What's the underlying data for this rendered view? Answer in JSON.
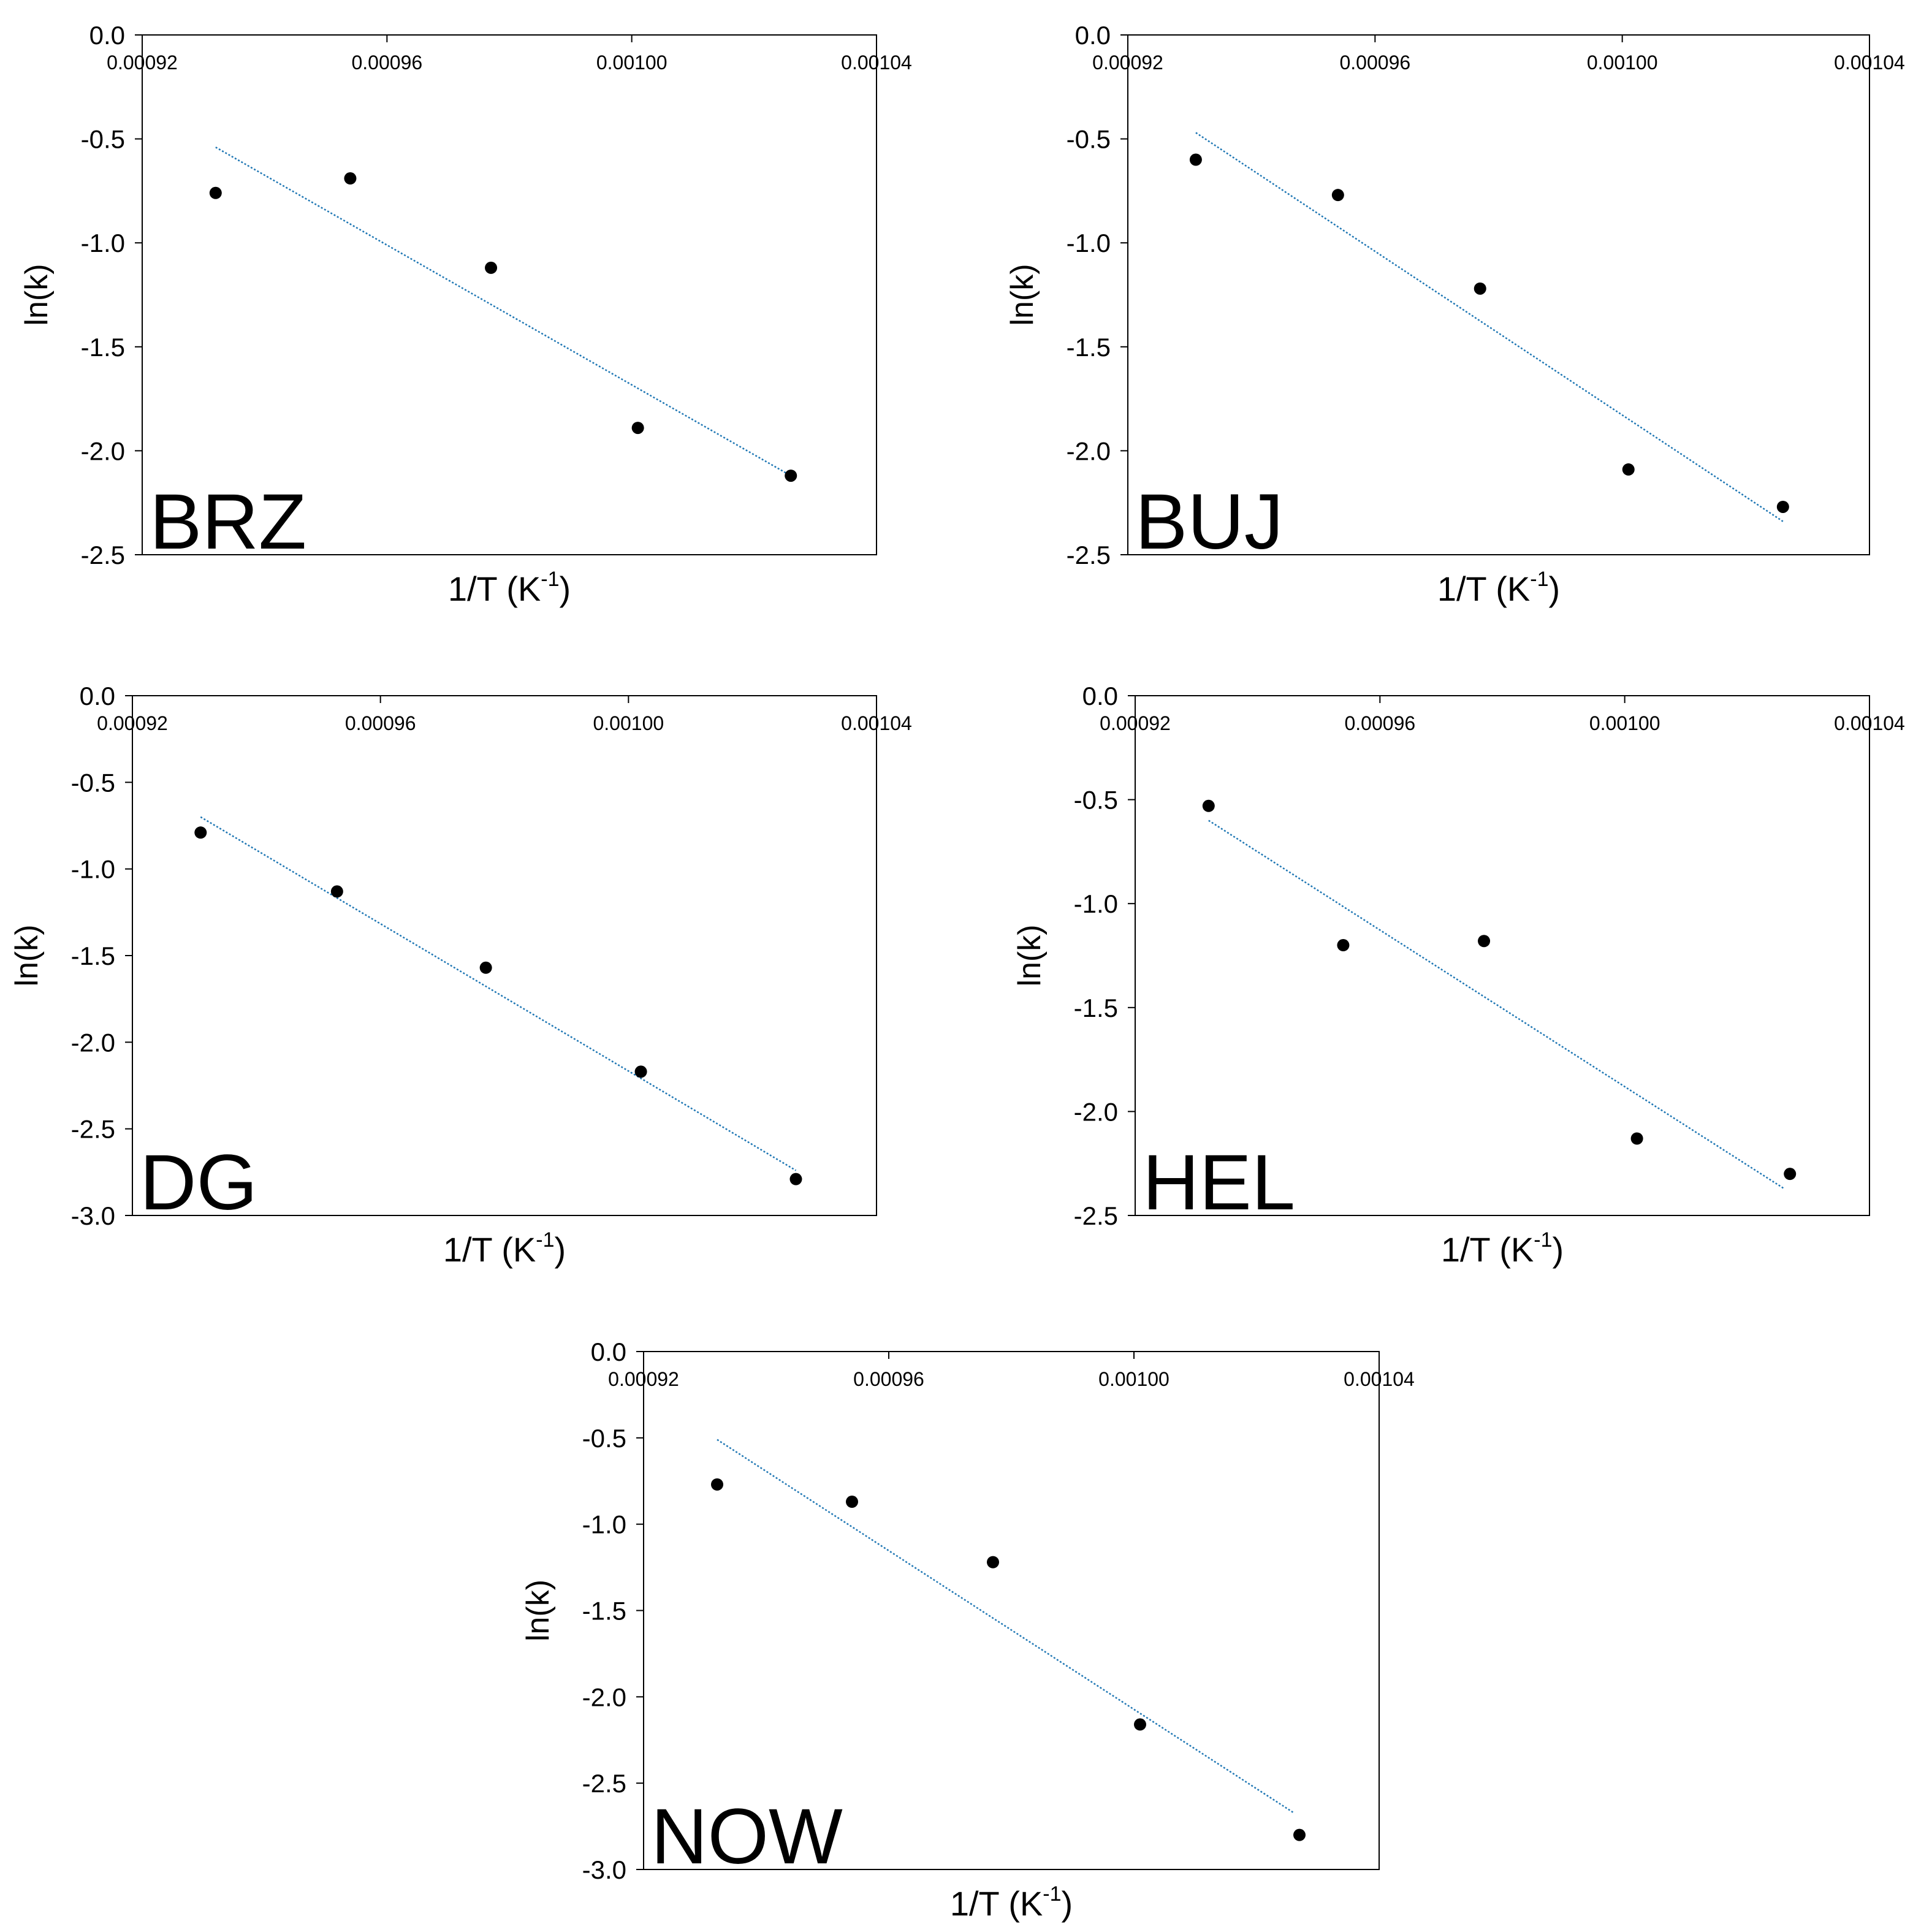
{
  "chart_data": [
    {
      "type": "scatter",
      "panel_label": "BRZ",
      "xlabel": "1/T (K",
      "xlabel_sup": "-1",
      "xlabel_close": ")",
      "ylabel": "ln(k)",
      "xlim": [
        0.00092,
        0.00104
      ],
      "ylim": [
        -2.5,
        0.0
      ],
      "xticks": [
        "0.00092",
        "0.00096",
        "0.00100",
        "0.00104"
      ],
      "yticks": [
        "0.0",
        "-0.5",
        "-1.0",
        "-1.5",
        "-2.0",
        "-2.5"
      ],
      "x_axis_position": "top",
      "grid": false,
      "points": {
        "x": [
          0.000932,
          0.000954,
          0.000977,
          0.001001,
          0.001026
        ],
        "y": [
          -0.76,
          -0.69,
          -1.12,
          -1.89,
          -2.12
        ]
      },
      "trendline": {
        "x": [
          0.000932,
          0.001026
        ],
        "y": [
          -0.54,
          -2.12
        ]
      },
      "point_color": "#000000",
      "trend_color": "#1f77b4"
    },
    {
      "type": "scatter",
      "panel_label": "BUJ",
      "xlabel": "1/T (K",
      "xlabel_sup": "-1",
      "xlabel_close": ")",
      "ylabel": "ln(k)",
      "xlim": [
        0.00092,
        0.00104
      ],
      "ylim": [
        -2.5,
        0.0
      ],
      "xticks": [
        "0.00092",
        "0.00096",
        "0.00100",
        "0.00104"
      ],
      "yticks": [
        "0.0",
        "-0.5",
        "-1.0",
        "-1.5",
        "-2.0",
        "-2.5"
      ],
      "x_axis_position": "top",
      "grid": false,
      "points": {
        "x": [
          0.000931,
          0.000954,
          0.000977,
          0.001001,
          0.001026
        ],
        "y": [
          -0.6,
          -0.77,
          -1.22,
          -2.09,
          -2.27
        ]
      },
      "trendline": {
        "x": [
          0.000931,
          0.001026
        ],
        "y": [
          -0.47,
          -2.34
        ]
      },
      "point_color": "#000000",
      "trend_color": "#1f77b4"
    },
    {
      "type": "scatter",
      "panel_label": "DG",
      "xlabel": "1/T (K",
      "xlabel_sup": "-1",
      "xlabel_close": ")",
      "ylabel": "ln(k)",
      "xlim": [
        0.00092,
        0.00104
      ],
      "ylim": [
        -3.0,
        0.0
      ],
      "xticks": [
        "0.00092",
        "0.00096",
        "0.00100",
        "0.00104"
      ],
      "yticks": [
        "0.0",
        "-0.5",
        "-1.0",
        "-1.5",
        "-2.0",
        "-2.5",
        "-3.0"
      ],
      "x_axis_position": "top",
      "grid": false,
      "points": {
        "x": [
          0.000931,
          0.000953,
          0.000977,
          0.001002,
          0.001027
        ],
        "y": [
          -0.79,
          -1.13,
          -1.57,
          -2.17,
          -2.79
        ]
      },
      "trendline": {
        "x": [
          0.000931,
          0.001027
        ],
        "y": [
          -0.7,
          -2.74
        ]
      },
      "point_color": "#000000",
      "trend_color": "#1f77b4"
    },
    {
      "type": "scatter",
      "panel_label": "HEL",
      "xlabel": "1/T (K",
      "xlabel_sup": "-1",
      "xlabel_close": ")",
      "ylabel": "ln(k)",
      "xlim": [
        0.00092,
        0.00104
      ],
      "ylim": [
        -2.5,
        0.0
      ],
      "xticks": [
        "0.00092",
        "0.00096",
        "0.00100",
        "0.00104"
      ],
      "yticks": [
        "0.0",
        "-0.5",
        "-1.0",
        "-1.5",
        "-2.0",
        "-2.5"
      ],
      "x_axis_position": "top",
      "grid": false,
      "points": {
        "x": [
          0.000932,
          0.000954,
          0.000977,
          0.001002,
          0.001027
        ],
        "y": [
          -0.53,
          -1.2,
          -1.18,
          -2.13,
          -2.3
        ]
      },
      "trendline": {
        "x": [
          0.000932,
          0.001026
        ],
        "y": [
          -0.6,
          -2.37
        ]
      },
      "point_color": "#000000",
      "trend_color": "#1f77b4"
    },
    {
      "type": "scatter",
      "panel_label": "NOW",
      "xlabel": "1/T (K",
      "xlabel_sup": "-1",
      "xlabel_close": ")",
      "ylabel": "ln(k)",
      "xlim": [
        0.00092,
        0.00104
      ],
      "ylim": [
        -3.0,
        0.0
      ],
      "xticks": [
        "0.00092",
        "0.00096",
        "0.00100",
        "0.00104"
      ],
      "yticks": [
        "0.0",
        "-0.5",
        "-1.0",
        "-1.5",
        "-2.0",
        "-2.5",
        "-3.0"
      ],
      "x_axis_position": "top",
      "grid": false,
      "points": {
        "x": [
          0.000932,
          0.000954,
          0.000977,
          0.001001,
          0.001027
        ],
        "y": [
          -0.77,
          -0.87,
          -1.22,
          -2.16,
          -2.8
        ]
      },
      "trendline": {
        "x": [
          0.000932,
          0.001026
        ],
        "y": [
          -0.51,
          -2.67
        ]
      },
      "point_color": "#000000",
      "trend_color": "#1f77b4"
    }
  ]
}
